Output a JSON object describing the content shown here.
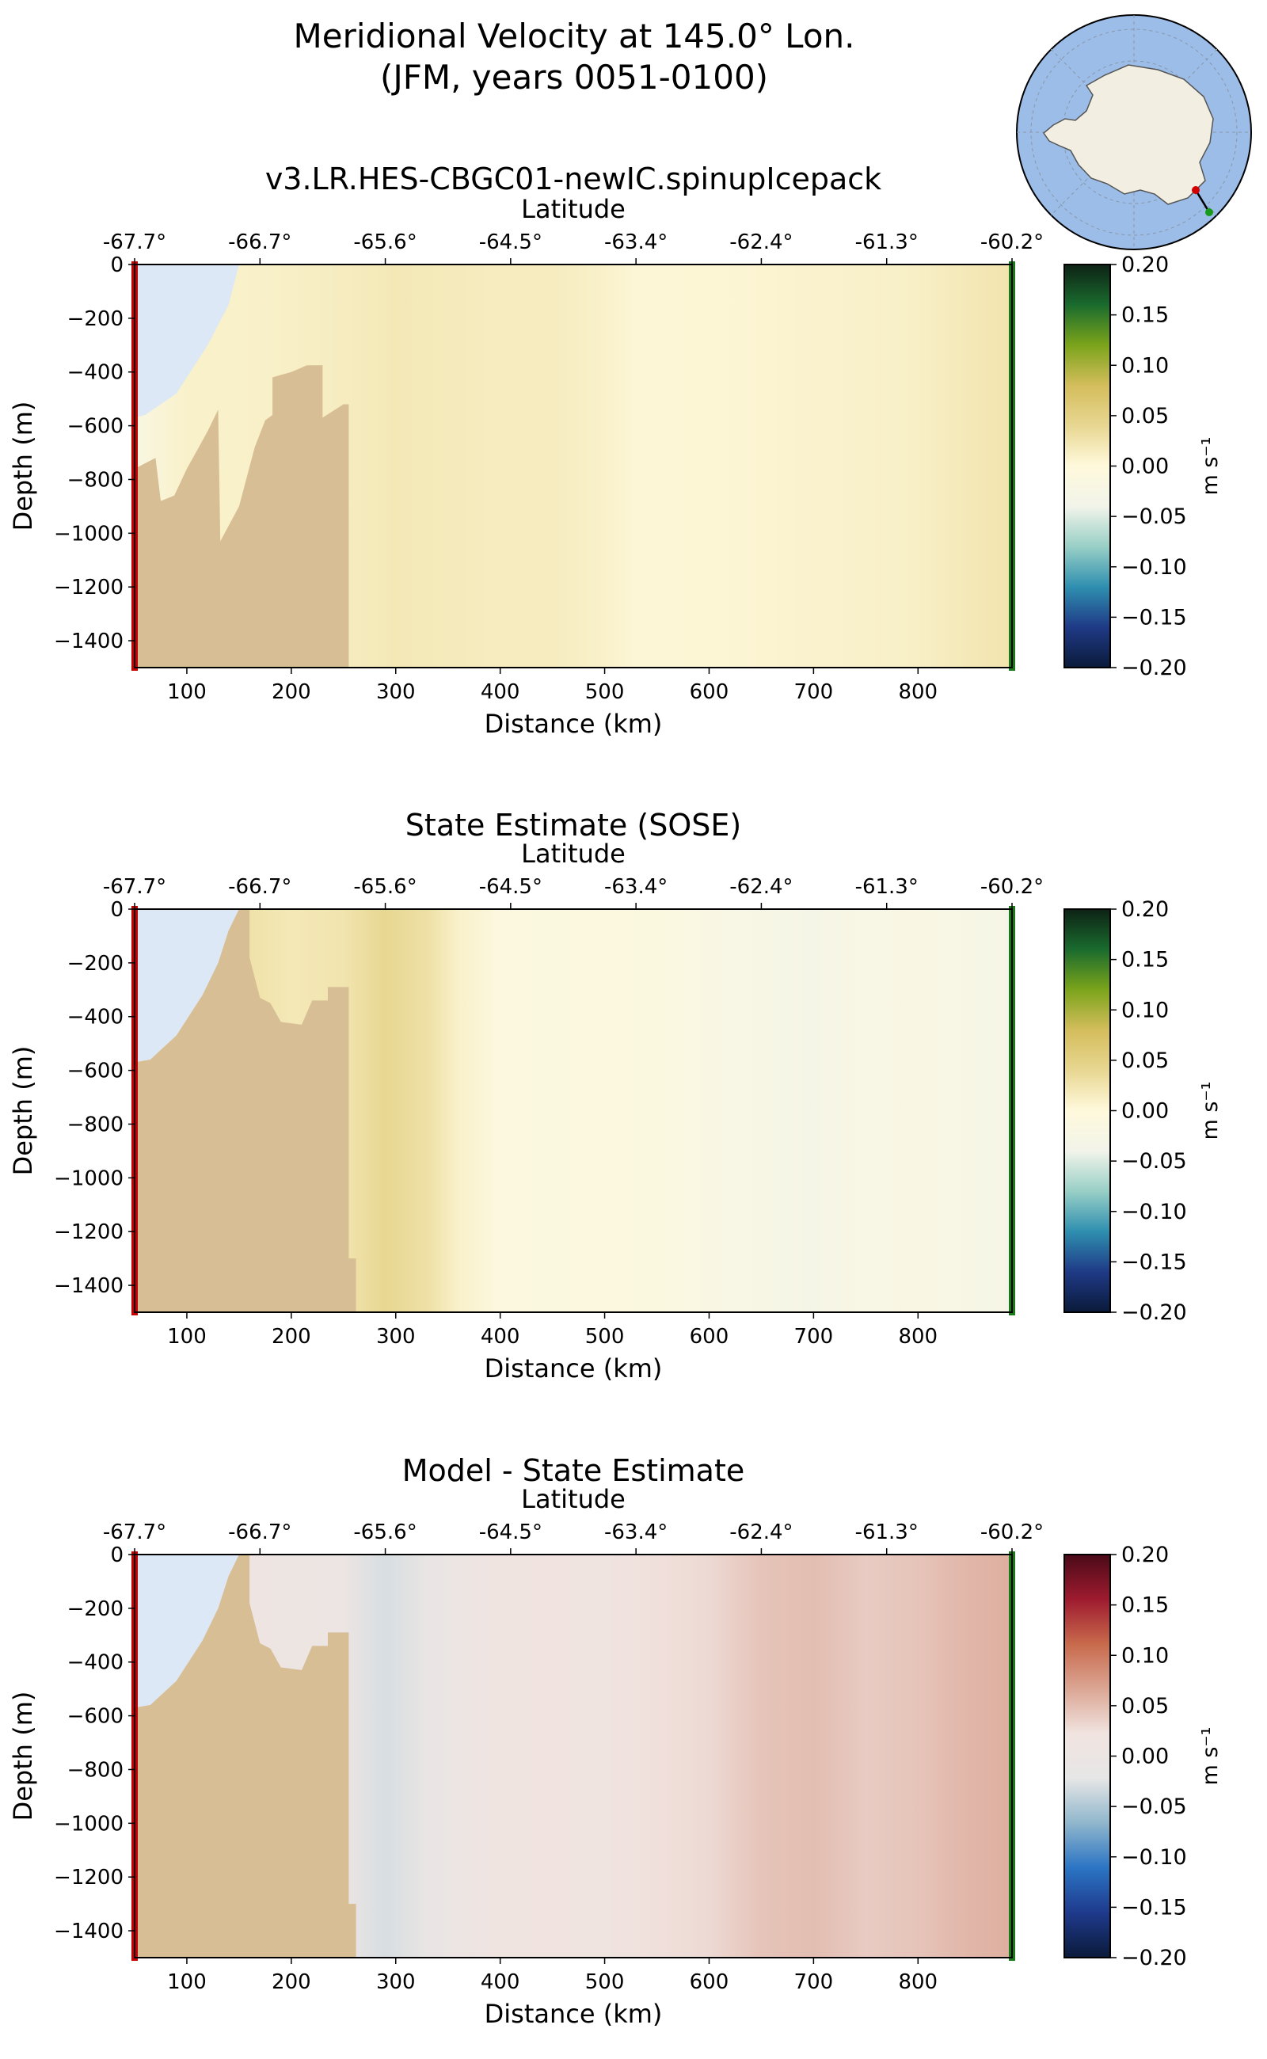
{
  "title": {
    "line1": "Meridional Velocity at 145.0° Lon.",
    "line2": "(JFM, years 0051-0100)"
  },
  "colormaps": {
    "velocity": [
      "#0a1a3a",
      "#1f3a86",
      "#2f8fb0",
      "#98cfc6",
      "#f2f4ea",
      "#fff9dc",
      "#e8d792",
      "#d4bd5c",
      "#7ba41b",
      "#1a6b2e",
      "#0d2215"
    ],
    "difference": [
      "#0a1a3a",
      "#1f3a8c",
      "#2b74c4",
      "#8fb6cc",
      "#e6e6e6",
      "#f1e4e0",
      "#dba694",
      "#c86a4c",
      "#9e1b2f",
      "#4a0a18"
    ]
  },
  "colors": {
    "land": "#d7be95",
    "ice_shelf": "#dde8f6",
    "section_start_marker": "#c40000",
    "section_end_marker": "#1a7a1a",
    "inset_ocean": "#9bbde8",
    "inset_land": "#f2efe2"
  },
  "inset_map": {
    "projection": "south-polar stereographic",
    "section_start_point": "red-dot",
    "section_end_point": "green-dot"
  },
  "chart_data": [
    {
      "type": "heatmap",
      "title": "v3.LR.HES-CBGC01-newIC.spinupIcepack",
      "xlabel": "Distance (km)",
      "ylabel": "Depth (m)",
      "top_xlabel": "Latitude",
      "xlim": [
        50,
        890
      ],
      "ylim": [
        -1500,
        0
      ],
      "x_ticks": [
        100,
        200,
        300,
        400,
        500,
        600,
        700,
        800
      ],
      "y_ticks": [
        0,
        -200,
        -400,
        -600,
        -800,
        -1000,
        -1200,
        -1400
      ],
      "lat_ticks": [
        "-67.7°",
        "-66.7°",
        "-65.6°",
        "-64.5°",
        "-63.4°",
        "-62.4°",
        "-61.3°",
        "-60.2°"
      ],
      "colorbar": {
        "label": "m s⁻¹",
        "range": [
          -0.2,
          0.2
        ],
        "ticks": [
          "0.20",
          "0.15",
          "0.10",
          "0.05",
          "0.00",
          "−0.05",
          "−0.10",
          "−0.15",
          "−0.20"
        ],
        "colormap": "velocity"
      },
      "field": {
        "description_values": "approx. meridional velocity (m/s) by distance column",
        "x": [
          50,
          100,
          150,
          200,
          250,
          300,
          350,
          400,
          450,
          500,
          530,
          600,
          650,
          700,
          750,
          800,
          850,
          890
        ],
        "values": [
          -0.02,
          0.01,
          0.01,
          0.012,
          0.015,
          0.02,
          0.018,
          0.015,
          0.015,
          0.01,
          0.003,
          0.004,
          0.006,
          0.008,
          0.01,
          0.012,
          0.02,
          0.025
        ]
      },
      "bathymetry": [
        [
          50,
          -760
        ],
        [
          70,
          -720
        ],
        [
          75,
          -880
        ],
        [
          88,
          -860
        ],
        [
          100,
          -760
        ],
        [
          120,
          -620
        ],
        [
          130,
          -540
        ],
        [
          132,
          -1030
        ],
        [
          150,
          -900
        ],
        [
          165,
          -680
        ],
        [
          175,
          -580
        ],
        [
          182,
          -560
        ],
        [
          182,
          -420
        ],
        [
          200,
          -400
        ],
        [
          215,
          -375
        ],
        [
          230,
          -375
        ],
        [
          230,
          -570
        ],
        [
          250,
          -520
        ],
        [
          255,
          -520
        ],
        [
          255,
          -1500
        ],
        [
          50,
          -1500
        ]
      ],
      "ice_shelf": [
        [
          50,
          0
        ],
        [
          150,
          0
        ],
        [
          140,
          -150
        ],
        [
          120,
          -300
        ],
        [
          90,
          -480
        ],
        [
          60,
          -560
        ],
        [
          50,
          -570
        ]
      ]
    },
    {
      "type": "heatmap",
      "title": "State Estimate (SOSE)",
      "xlabel": "Distance (km)",
      "ylabel": "Depth (m)",
      "top_xlabel": "Latitude",
      "xlim": [
        50,
        890
      ],
      "ylim": [
        -1500,
        0
      ],
      "x_ticks": [
        100,
        200,
        300,
        400,
        500,
        600,
        700,
        800
      ],
      "y_ticks": [
        0,
        -200,
        -400,
        -600,
        -800,
        -1000,
        -1200,
        -1400
      ],
      "lat_ticks": [
        "-67.7°",
        "-66.7°",
        "-65.6°",
        "-64.5°",
        "-63.4°",
        "-62.4°",
        "-61.3°",
        "-60.2°"
      ],
      "colorbar": {
        "label": "m s⁻¹",
        "range": [
          -0.2,
          0.2
        ],
        "ticks": [
          "0.20",
          "0.15",
          "0.10",
          "0.05",
          "0.00",
          "−0.05",
          "−0.10",
          "−0.15",
          "−0.20"
        ],
        "colormap": "velocity"
      },
      "field": {
        "x": [
          50,
          100,
          150,
          200,
          250,
          290,
          330,
          360,
          400,
          450,
          500,
          550,
          600,
          650,
          700,
          750,
          800,
          850,
          890
        ],
        "values": [
          0.0,
          0.02,
          0.03,
          0.02,
          0.025,
          0.04,
          0.03,
          0.01,
          -0.01,
          -0.012,
          -0.01,
          -0.012,
          -0.02,
          -0.025,
          -0.03,
          -0.022,
          -0.02,
          -0.025,
          -0.03
        ]
      },
      "bathymetry": [
        [
          50,
          -570
        ],
        [
          65,
          -560
        ],
        [
          90,
          -470
        ],
        [
          115,
          -320
        ],
        [
          130,
          -200
        ],
        [
          140,
          -80
        ],
        [
          150,
          0
        ],
        [
          160,
          0
        ],
        [
          160,
          -180
        ],
        [
          170,
          -330
        ],
        [
          180,
          -350
        ],
        [
          190,
          -420
        ],
        [
          210,
          -430
        ],
        [
          220,
          -340
        ],
        [
          235,
          -340
        ],
        [
          235,
          -290
        ],
        [
          255,
          -290
        ],
        [
          255,
          -1300
        ],
        [
          262,
          -1300
        ],
        [
          262,
          -1500
        ],
        [
          50,
          -1500
        ]
      ],
      "ice_shelf": [
        [
          50,
          0
        ],
        [
          150,
          0
        ],
        [
          140,
          -80
        ],
        [
          130,
          -200
        ],
        [
          115,
          -320
        ],
        [
          90,
          -470
        ],
        [
          65,
          -560
        ],
        [
          50,
          -570
        ]
      ]
    },
    {
      "type": "heatmap",
      "title": "Model - State Estimate",
      "xlabel": "Distance (km)",
      "ylabel": "Depth (m)",
      "top_xlabel": "Latitude",
      "xlim": [
        50,
        890
      ],
      "ylim": [
        -1500,
        0
      ],
      "x_ticks": [
        100,
        200,
        300,
        400,
        500,
        600,
        700,
        800
      ],
      "y_ticks": [
        0,
        -200,
        -400,
        -600,
        -800,
        -1000,
        -1200,
        -1400
      ],
      "lat_ticks": [
        "-67.7°",
        "-66.7°",
        "-65.6°",
        "-64.5°",
        "-63.4°",
        "-62.4°",
        "-61.3°",
        "-60.2°"
      ],
      "colorbar": {
        "label": "m s⁻¹",
        "range": [
          -0.2,
          0.2
        ],
        "ticks": [
          "0.20",
          "0.15",
          "0.10",
          "0.05",
          "0.00",
          "−0.05",
          "−0.10",
          "−0.15",
          "−0.20"
        ],
        "colormap": "difference"
      },
      "field": {
        "x": [
          50,
          150,
          200,
          250,
          290,
          330,
          360,
          400,
          450,
          500,
          550,
          600,
          650,
          700,
          750,
          800,
          850,
          890
        ],
        "values": [
          0.01,
          0.01,
          0.008,
          0.0,
          -0.03,
          -0.01,
          0.0,
          0.02,
          0.022,
          0.02,
          0.025,
          0.03,
          0.045,
          0.05,
          0.04,
          0.045,
          0.055,
          0.06
        ]
      },
      "bathymetry": [
        [
          50,
          -570
        ],
        [
          65,
          -560
        ],
        [
          90,
          -470
        ],
        [
          115,
          -320
        ],
        [
          130,
          -200
        ],
        [
          140,
          -80
        ],
        [
          150,
          0
        ],
        [
          160,
          0
        ],
        [
          160,
          -180
        ],
        [
          170,
          -330
        ],
        [
          180,
          -350
        ],
        [
          190,
          -420
        ],
        [
          210,
          -430
        ],
        [
          220,
          -340
        ],
        [
          235,
          -340
        ],
        [
          235,
          -290
        ],
        [
          255,
          -290
        ],
        [
          255,
          -1300
        ],
        [
          262,
          -1300
        ],
        [
          262,
          -1500
        ],
        [
          50,
          -1500
        ]
      ],
      "ice_shelf": [
        [
          50,
          0
        ],
        [
          150,
          0
        ],
        [
          140,
          -80
        ],
        [
          130,
          -200
        ],
        [
          115,
          -320
        ],
        [
          90,
          -470
        ],
        [
          65,
          -560
        ],
        [
          50,
          -570
        ]
      ]
    }
  ]
}
